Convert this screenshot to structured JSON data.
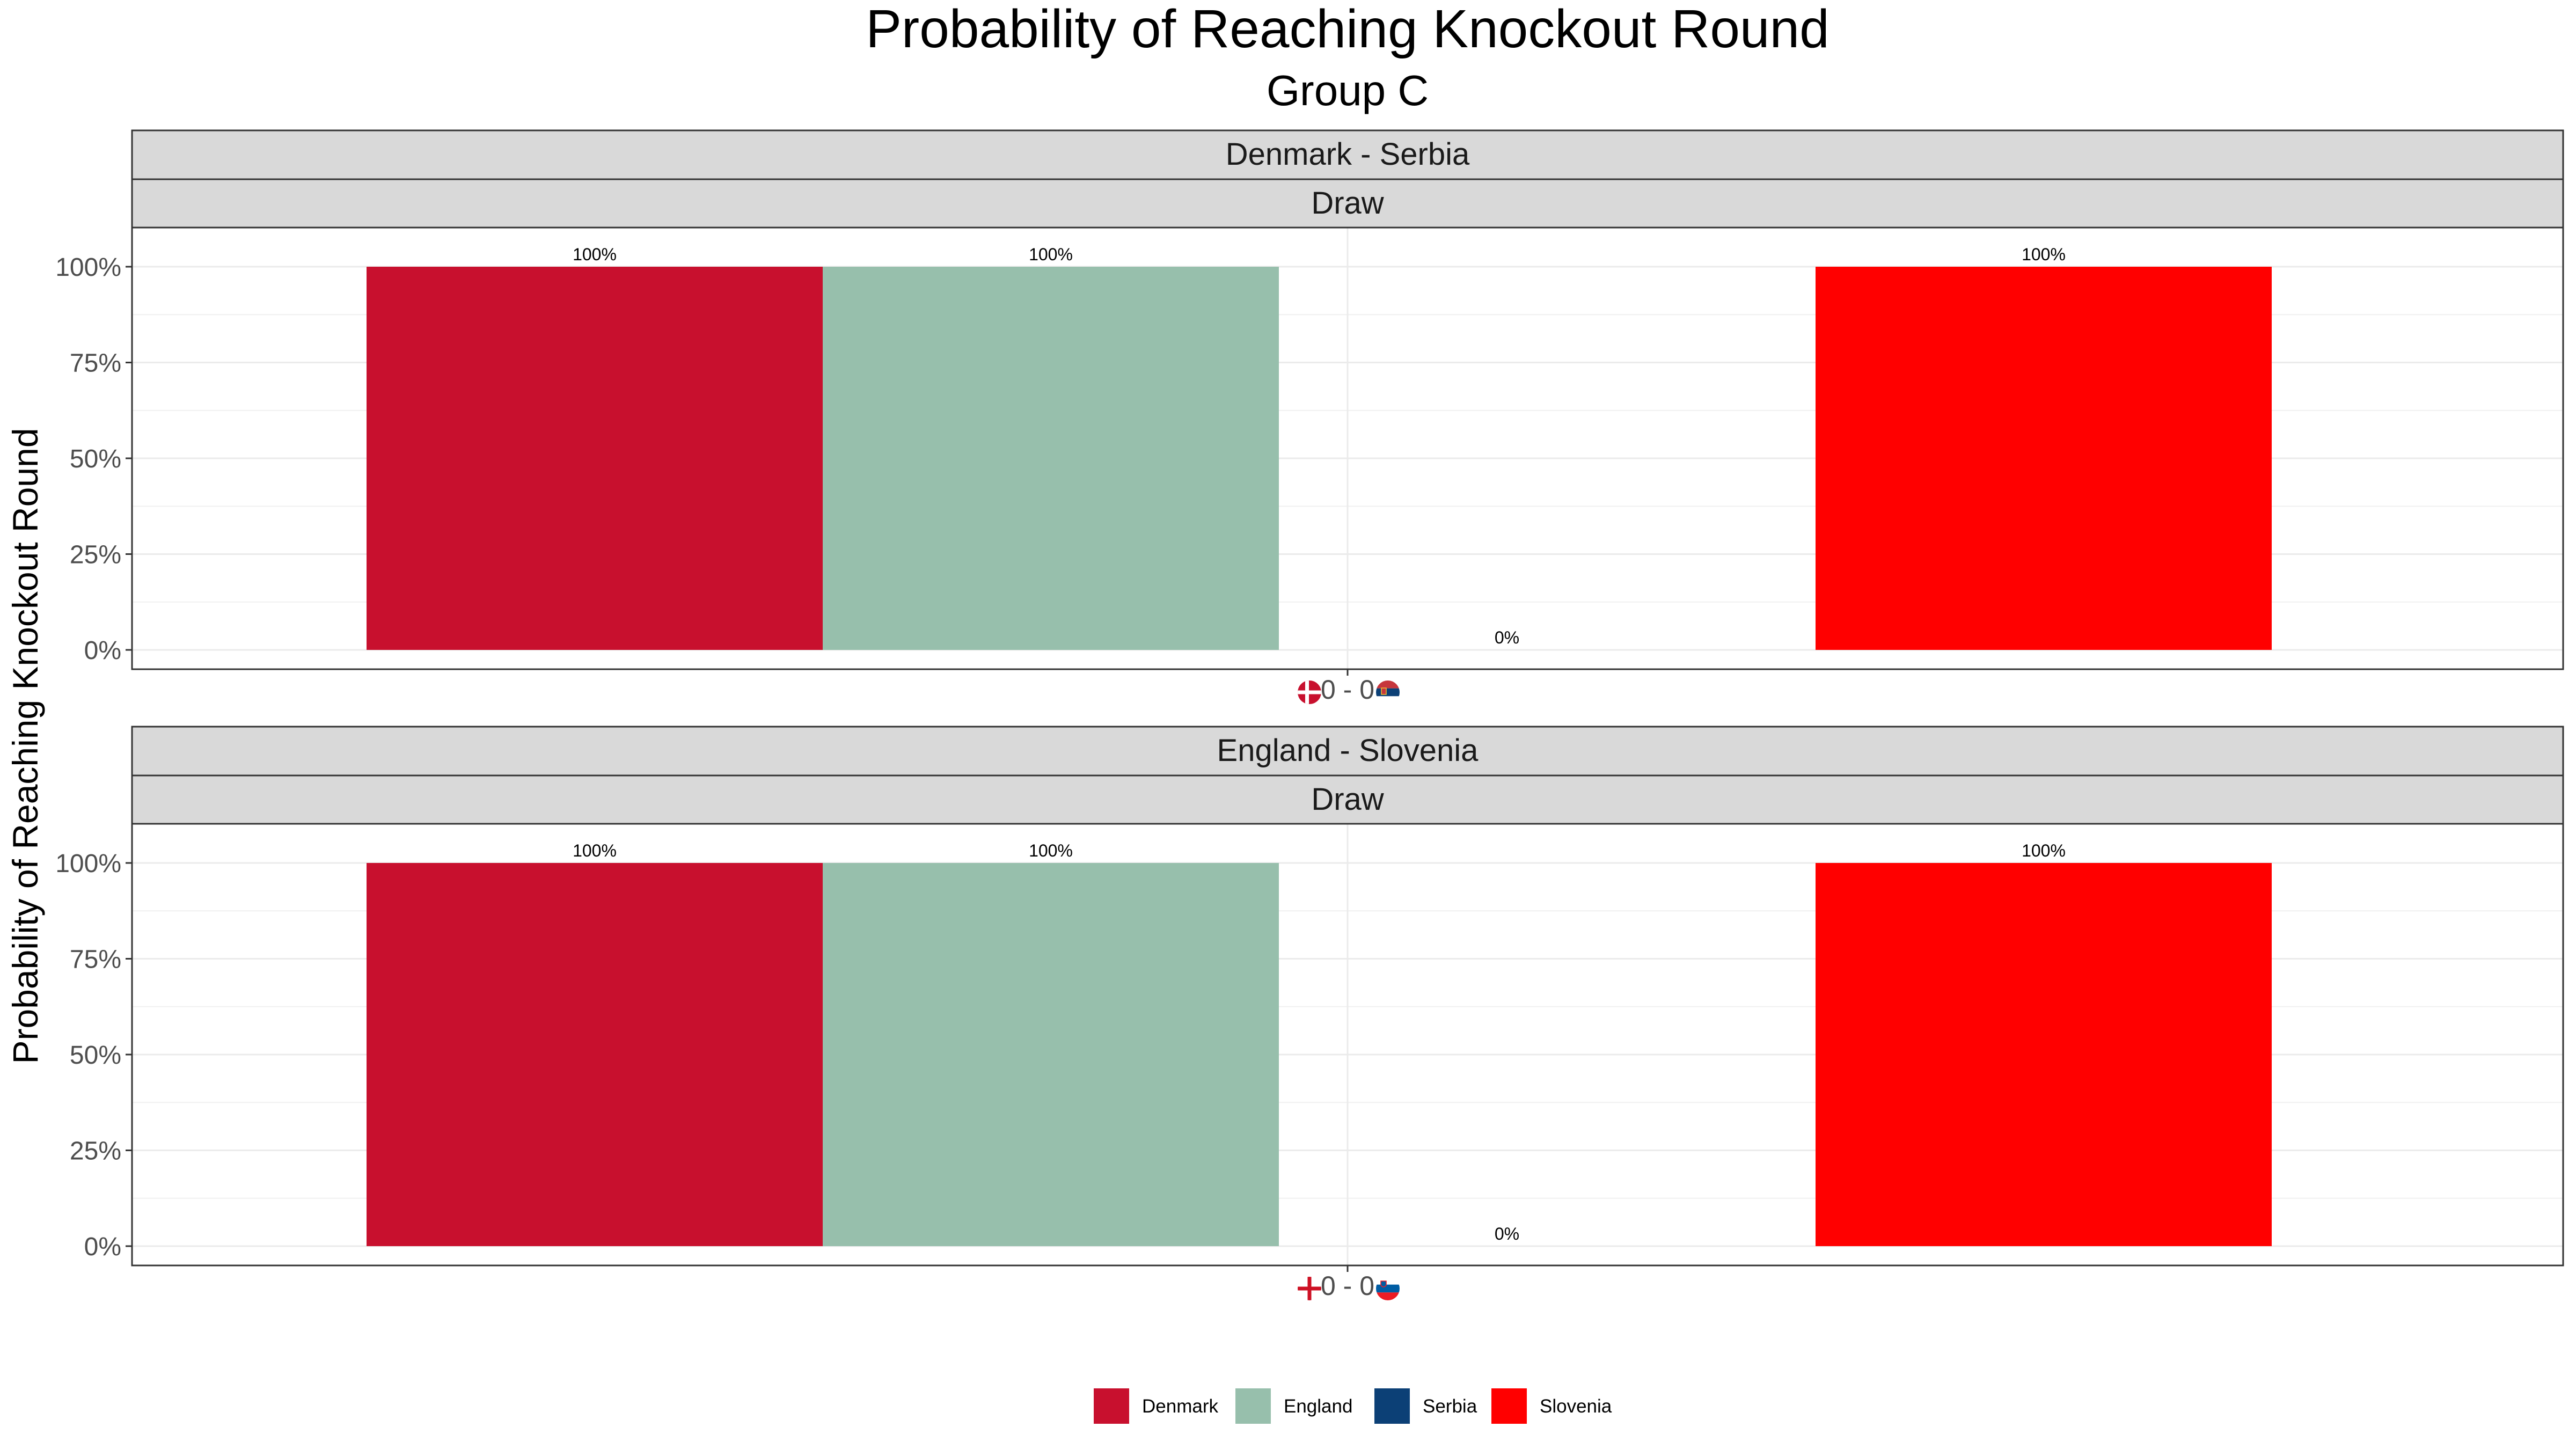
{
  "chart_data": {
    "type": "bar",
    "title": "Probability of Reaching Knockout Round",
    "subtitle": "Group C",
    "ylabel": "Probability of Reaching Knockout Round",
    "ylim": [
      0,
      1.05
    ],
    "y_ticks": [
      "0%",
      "25%",
      "50%",
      "75%",
      "100%"
    ],
    "grid": true,
    "legend": "bottom",
    "categories": [
      "Denmark",
      "England",
      "Serbia",
      "Slovenia"
    ],
    "colors": {
      "Denmark": "#c8102e",
      "England": "#97bfac",
      "Serbia": "#0c4076",
      "Slovenia": "#ff0000"
    },
    "panels": [
      {
        "match": "Denmark - Serbia",
        "result": "Draw",
        "x_tick": "0 - 0",
        "flags": [
          "denmark-flag-icon",
          "serbia-flag-icon"
        ],
        "values": [
          1,
          1,
          0,
          1
        ],
        "labels": [
          "100%",
          "100%",
          "0%",
          "100%"
        ]
      },
      {
        "match": "England - Slovenia",
        "result": "Draw",
        "x_tick": "0 - 0",
        "flags": [
          "england-flag-icon",
          "slovenia-flag-icon"
        ],
        "values": [
          1,
          1,
          0,
          1
        ],
        "labels": [
          "100%",
          "100%",
          "0%",
          "100%"
        ]
      }
    ]
  }
}
